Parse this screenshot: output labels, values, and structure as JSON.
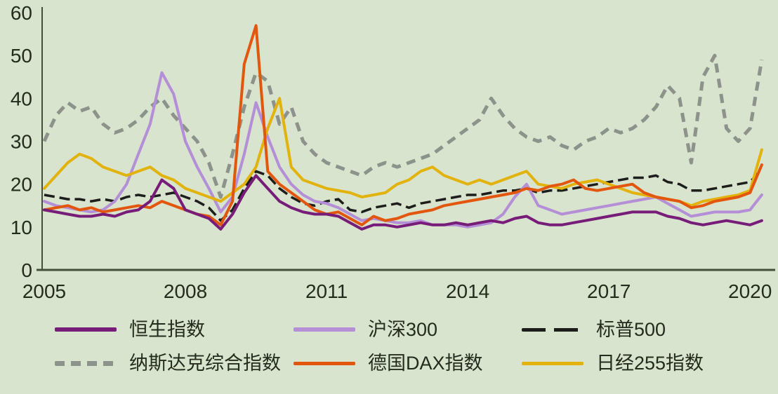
{
  "figure": {
    "background_color": "#d8e4ce",
    "text_color": "#242b1d",
    "axis_color": "#454d3b"
  },
  "chart_data": {
    "type": "line",
    "title": "",
    "xlabel": "",
    "ylabel": "",
    "grid": false,
    "legend_position": "bottom",
    "ylim": [
      0,
      60
    ],
    "xlim": [
      2005,
      2020.4
    ],
    "y_tick_values": [
      0,
      10,
      20,
      30,
      40,
      50,
      60
    ],
    "y_ticks": [
      "0",
      "10",
      "20",
      "30",
      "40",
      "50",
      "60"
    ],
    "x_tick_values": [
      2005,
      2008,
      2011,
      2014,
      2017,
      2020
    ],
    "x_ticks": [
      "2005",
      "2008",
      "2011",
      "2014",
      "2017",
      "2020"
    ],
    "x": [
      2005,
      2005.25,
      2005.5,
      2005.75,
      2006,
      2006.25,
      2006.5,
      2006.75,
      2007,
      2007.25,
      2007.5,
      2007.75,
      2008,
      2008.25,
      2008.5,
      2008.75,
      2009,
      2009.25,
      2009.5,
      2009.75,
      2010,
      2010.25,
      2010.5,
      2010.75,
      2011,
      2011.25,
      2011.5,
      2011.75,
      2012,
      2012.25,
      2012.5,
      2012.75,
      2013,
      2013.25,
      2013.5,
      2013.75,
      2014,
      2014.25,
      2014.5,
      2014.75,
      2015,
      2015.25,
      2015.5,
      2015.75,
      2016,
      2016.25,
      2016.5,
      2016.75,
      2017,
      2017.25,
      2017.5,
      2017.75,
      2018,
      2018.25,
      2018.5,
      2018.75,
      2019,
      2019.25,
      2019.5,
      2019.75,
      2020,
      2020.25
    ],
    "series": [
      {
        "id": "nasdaq-composite",
        "name": "纳斯达克综合指数",
        "color": "#8d928a",
        "style": "dashed",
        "dash": "13 9",
        "legend_dash": [
          14,
          9
        ],
        "width": 5,
        "values": [
          30,
          36,
          39,
          37,
          38,
          34,
          32,
          33,
          35,
          38,
          40,
          36,
          33,
          30,
          25,
          17,
          27,
          38,
          46,
          44,
          34,
          38,
          30,
          27,
          25,
          24,
          23,
          22,
          24,
          25,
          24,
          25,
          26,
          27,
          29,
          31,
          33,
          35,
          40,
          36,
          33,
          31,
          30,
          31,
          29,
          28,
          30,
          31,
          33,
          32,
          33,
          35,
          38,
          43,
          40,
          25,
          45,
          50,
          33,
          30,
          33,
          49
        ]
      },
      {
        "id": "sp-500",
        "name": "标普500",
        "color": "#1d1d1b",
        "style": "dashed",
        "dash": "15 7",
        "legend_dash": [
          34,
          12
        ],
        "width": 3.5,
        "values": [
          17.5,
          17,
          16.5,
          16.5,
          16,
          16.5,
          16,
          17,
          17.5,
          17,
          17.5,
          18,
          17,
          16,
          14.5,
          11.5,
          14,
          19,
          23,
          22,
          19,
          17,
          15.5,
          15,
          16,
          16.5,
          14,
          13.5,
          14.5,
          15,
          15.5,
          14.5,
          15.5,
          16,
          16.5,
          17,
          17.5,
          17.5,
          18,
          18.5,
          18.5,
          19,
          18,
          18.5,
          18.5,
          19,
          19.5,
          20,
          20.5,
          21,
          21.5,
          21.5,
          22,
          20.5,
          20,
          18.5,
          18.5,
          19,
          19.5,
          20,
          20.5,
          23.5
        ]
      },
      {
        "id": "csi-300",
        "name": "沪深300",
        "color": "#b48ed6",
        "style": "solid",
        "dash": null,
        "legend_dash": null,
        "width": 4,
        "values": [
          16,
          15,
          14.5,
          14,
          13.5,
          14,
          16,
          20,
          27,
          34,
          46,
          41,
          30,
          24,
          19,
          13.5,
          17,
          27,
          39,
          31,
          24,
          20,
          17.5,
          16,
          15.5,
          14.5,
          13,
          11.5,
          12,
          11.5,
          11,
          11,
          11.5,
          10.5,
          10.5,
          10.5,
          10,
          10.5,
          11,
          13,
          17,
          20,
          15,
          14,
          13,
          13.5,
          14,
          14.5,
          15,
          15.5,
          16,
          16.5,
          17,
          15.5,
          14,
          12.5,
          13,
          13.5,
          13.5,
          13.5,
          14,
          17.5
        ]
      },
      {
        "id": "nikkei-225",
        "name": "日经255指数",
        "color": "#e2b30d",
        "style": "solid",
        "dash": null,
        "legend_dash": null,
        "width": 4,
        "values": [
          19,
          22,
          25,
          27,
          26,
          24,
          23,
          22,
          23,
          24,
          22,
          21,
          19,
          18,
          17,
          16,
          18,
          20,
          24,
          33,
          40,
          24,
          21,
          20,
          19,
          18.5,
          18,
          17,
          17.5,
          18,
          20,
          21,
          23,
          24,
          22,
          21,
          20,
          21,
          20,
          21,
          22,
          23,
          20,
          19.5,
          19,
          20,
          20.5,
          21,
          20,
          19,
          18,
          17.5,
          17,
          16.5,
          16,
          15,
          16,
          16.5,
          17,
          17.5,
          18.5,
          28
        ]
      },
      {
        "id": "dax",
        "name": "德国DAX指数",
        "color": "#e2560d",
        "style": "solid",
        "dash": null,
        "legend_dash": null,
        "width": 4,
        "values": [
          14,
          14.5,
          15,
          14,
          14.5,
          13.5,
          14,
          14.5,
          15,
          14.5,
          16,
          15,
          14,
          13,
          12.5,
          10.5,
          16,
          48,
          57,
          23,
          20,
          18,
          16,
          14,
          13,
          13.5,
          12,
          10.5,
          12.5,
          11.5,
          12,
          13,
          13.5,
          14,
          15,
          15.5,
          16,
          16.5,
          17,
          17.5,
          18,
          19,
          18.5,
          19.5,
          20,
          21,
          19,
          18.5,
          19,
          19.5,
          20,
          18,
          17,
          16.5,
          16,
          14.5,
          15,
          16,
          16.5,
          17,
          18,
          24.5
        ]
      },
      {
        "id": "hang-seng",
        "name": "恒生指数",
        "color": "#771c78",
        "style": "solid",
        "dash": null,
        "legend_dash": null,
        "width": 4,
        "values": [
          14,
          13.5,
          13,
          12.5,
          12.5,
          13,
          12.5,
          13.5,
          14,
          16,
          21,
          19,
          14,
          13,
          12,
          9.5,
          13,
          18,
          22,
          19,
          16,
          14.5,
          13.5,
          13,
          13,
          12.5,
          11,
          9.5,
          10.5,
          10.5,
          10,
          10.5,
          11,
          10.5,
          10.5,
          11,
          10.5,
          11,
          11.5,
          11,
          12,
          12.5,
          11,
          10.5,
          10.5,
          11,
          11.5,
          12,
          12.5,
          13,
          13.5,
          13.5,
          13.5,
          12.5,
          12,
          11,
          10.5,
          11,
          11.5,
          11,
          10.5,
          11.5
        ]
      }
    ],
    "legend_rows": [
      [
        "恒生指数",
        "沪深300",
        "标普500"
      ],
      [
        "纳斯达克综合指数",
        "德国DAX指数",
        "日经255指数"
      ]
    ]
  }
}
